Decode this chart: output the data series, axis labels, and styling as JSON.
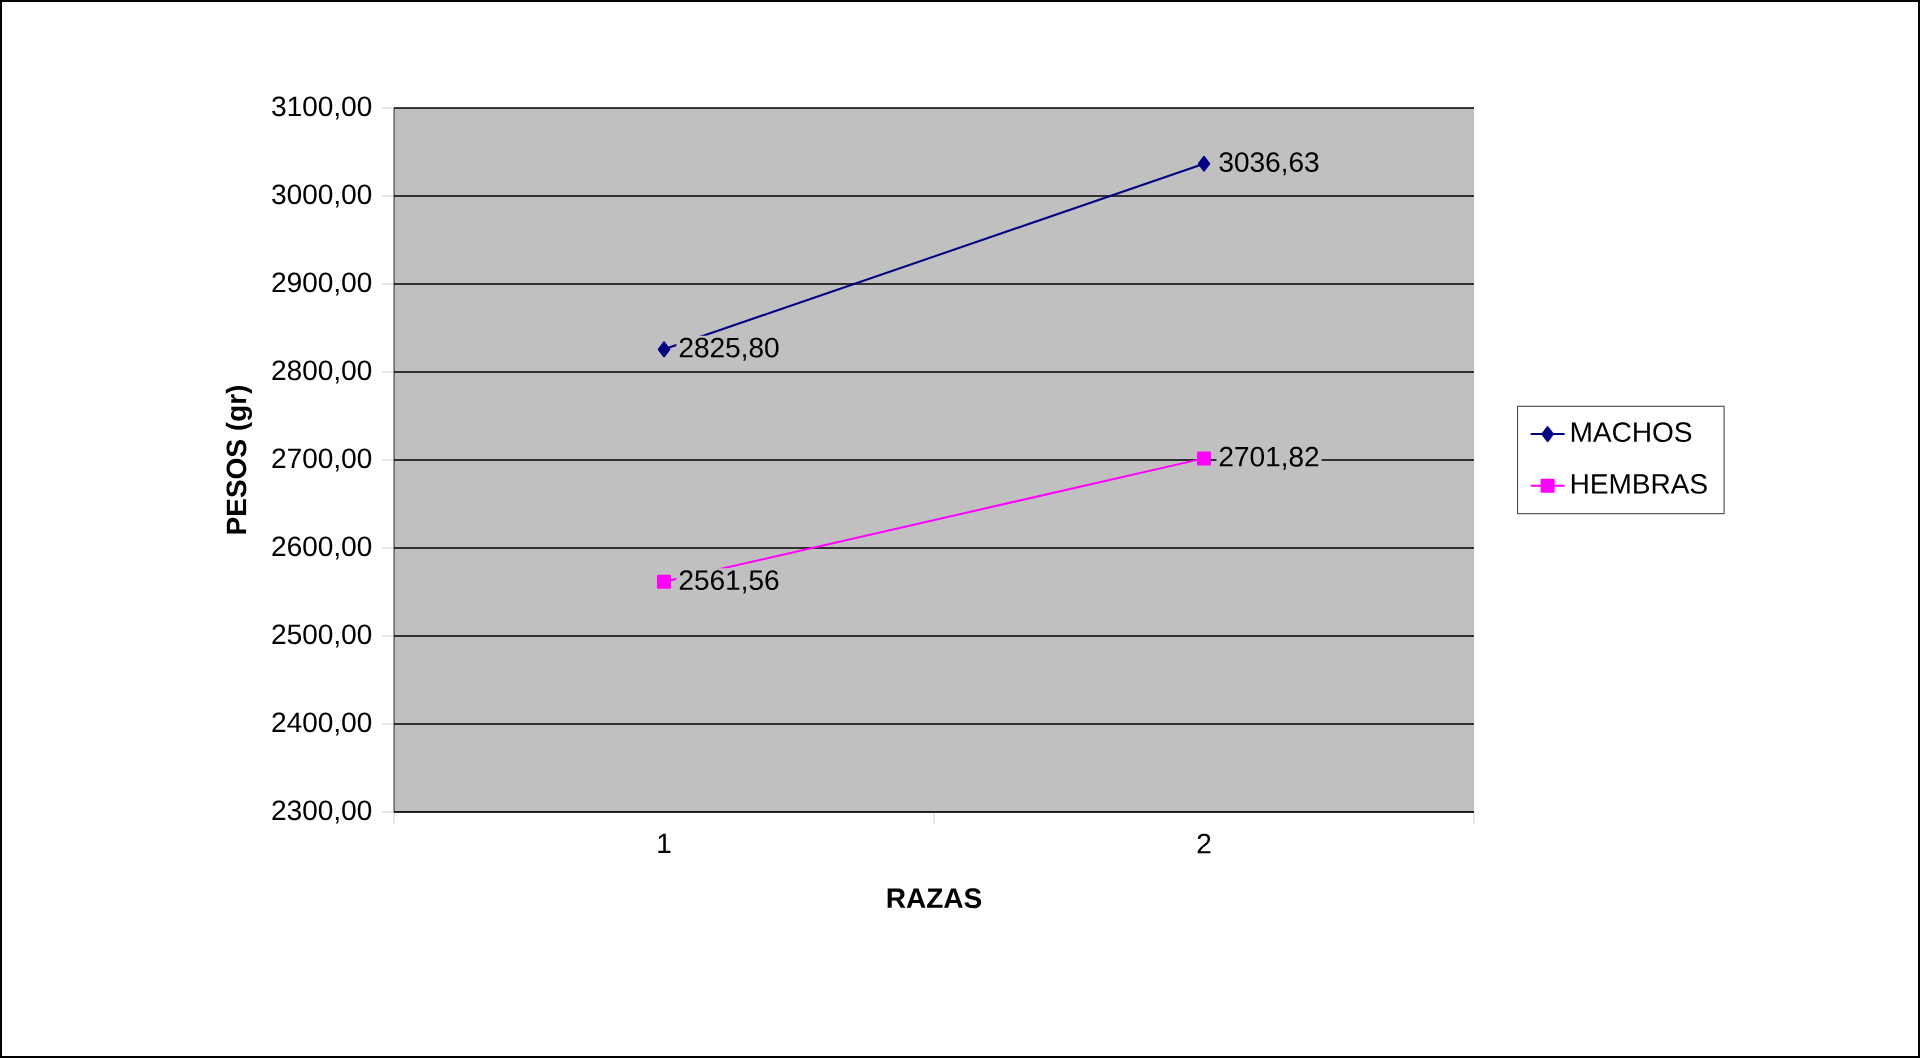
{
  "chart_data": {
    "type": "line",
    "xlabel": "RAZAS",
    "ylabel": "PESOS (gr)",
    "categories": [
      "1",
      "2"
    ],
    "series": [
      {
        "name": "MACHOS",
        "color": "#000080",
        "marker": "diamond",
        "values": [
          2825.8,
          3036.63
        ],
        "value_labels": [
          "2825,80",
          "3036,63"
        ]
      },
      {
        "name": "HEMBRAS",
        "color": "#ff00ff",
        "marker": "square",
        "values": [
          2561.56,
          2701.82
        ],
        "value_labels": [
          "2561,56",
          "2701,82"
        ]
      }
    ],
    "ylim": [
      2300,
      3100
    ],
    "yticks": [
      {
        "value": 2300,
        "label": "2300,00"
      },
      {
        "value": 2400,
        "label": "2400,00"
      },
      {
        "value": 2500,
        "label": "2500,00"
      },
      {
        "value": 2600,
        "label": "2600,00"
      },
      {
        "value": 2700,
        "label": "2700,00"
      },
      {
        "value": 2800,
        "label": "2800,00"
      },
      {
        "value": 2900,
        "label": "2900,00"
      },
      {
        "value": 3000,
        "label": "3000,00"
      },
      {
        "value": 3100,
        "label": "3100,00"
      }
    ],
    "grid": "y",
    "legend": "right",
    "line_style": "solid"
  }
}
